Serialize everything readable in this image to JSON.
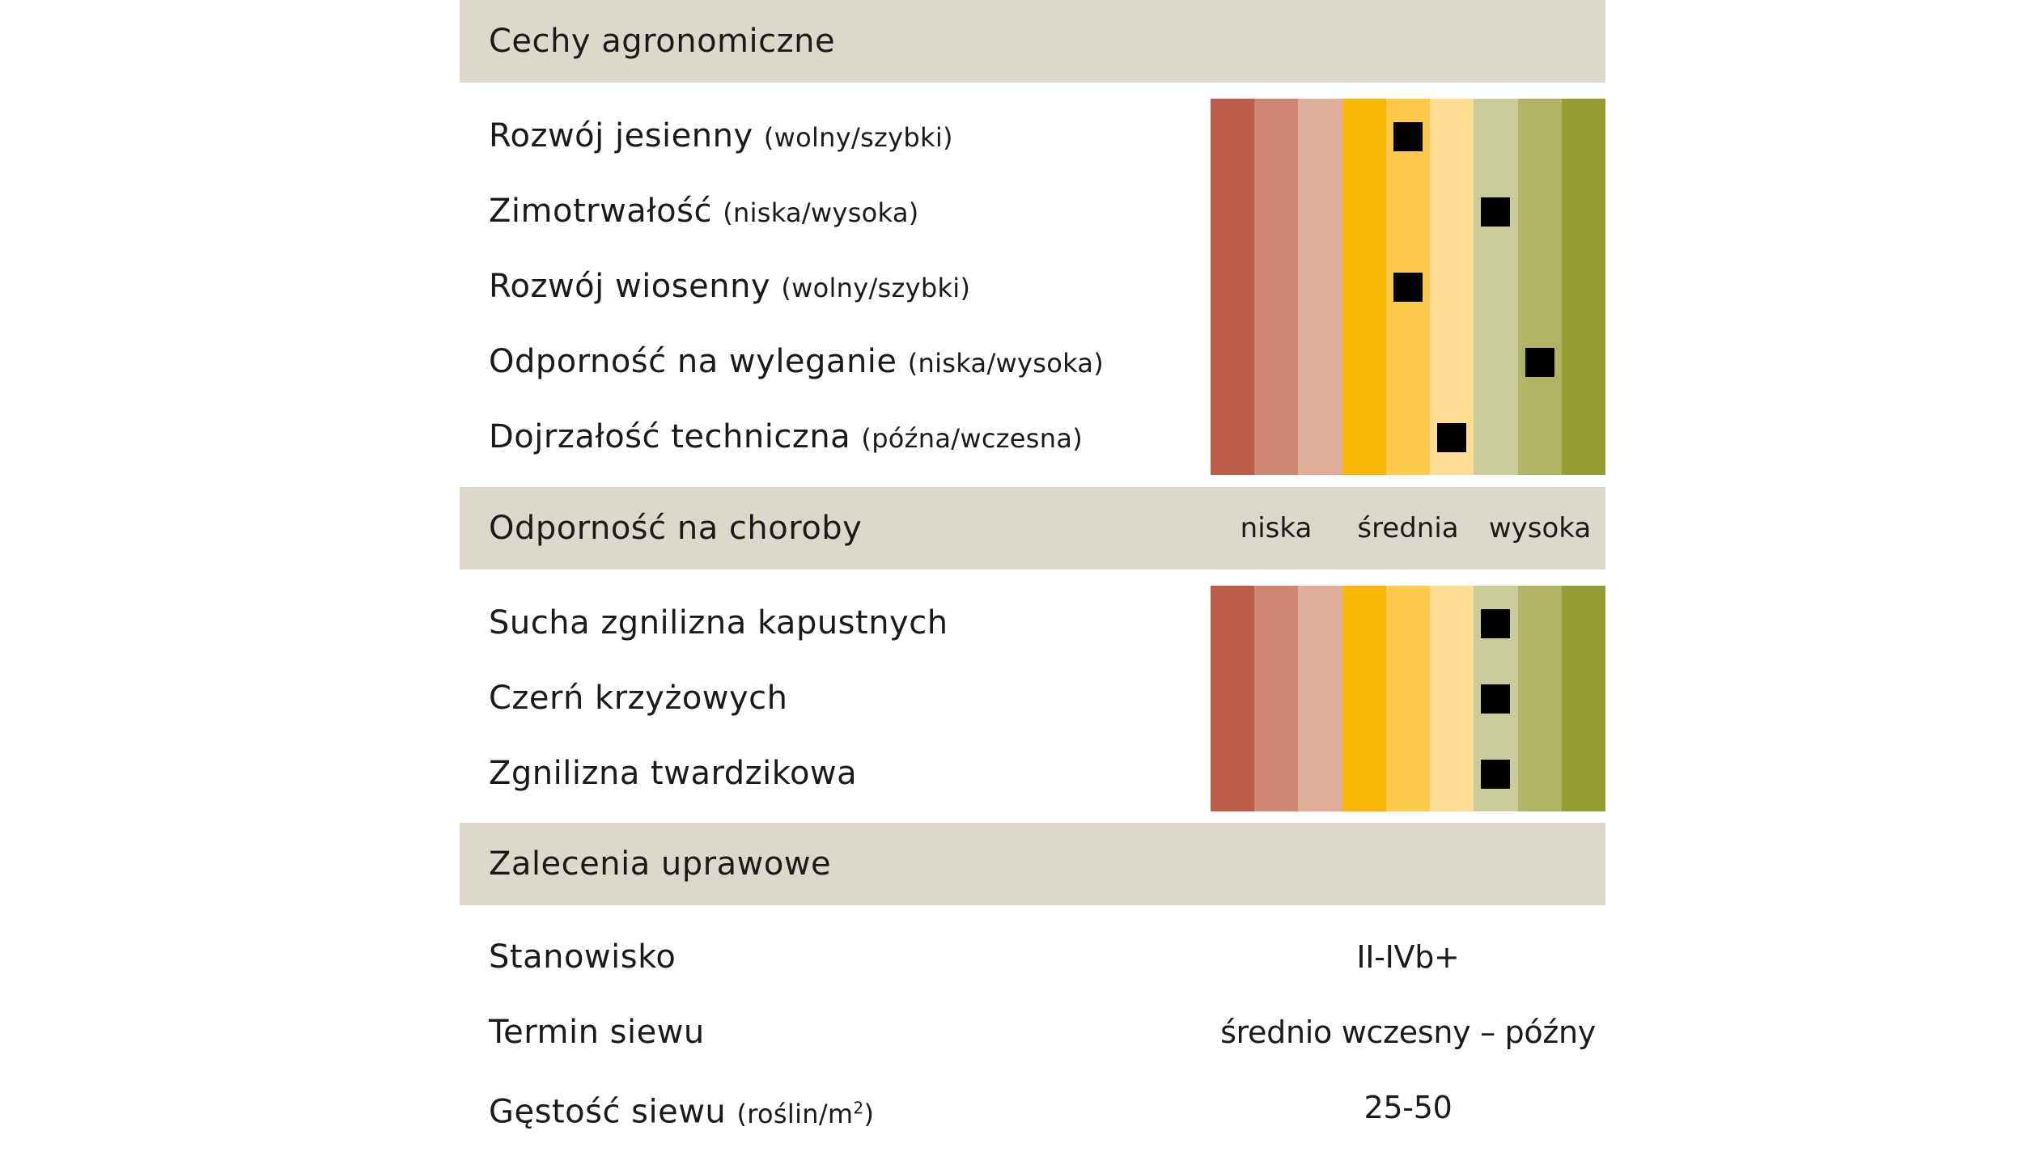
{
  "sections": {
    "agronomic": {
      "title": "Cechy agronomiczne"
    },
    "disease": {
      "title": "Odporność na choroby"
    },
    "cultivation": {
      "title": "Zalecenia uprawowe"
    }
  },
  "scale_labels": {
    "low": "niska",
    "mid": "średnia",
    "high": "wysoka"
  },
  "agronomic_rows": [
    {
      "label": "Rozwój jesienny",
      "hint": "(wolny/szybki)",
      "level": 5
    },
    {
      "label": "Zimotrwałość",
      "hint": "(niska/wysoka)",
      "level": 7
    },
    {
      "label": "Rozwój wiosenny",
      "hint": "(wolny/szybki)",
      "level": 5
    },
    {
      "label": "Odporność na wyleganie",
      "hint": "(niska/wysoka)",
      "level": 8
    },
    {
      "label": "Dojrzałość techniczna",
      "hint": "(późna/wczesna)",
      "level": 6
    }
  ],
  "disease_rows": [
    {
      "label": "Sucha zgnilizna kapustnych",
      "level": 7
    },
    {
      "label": "Czerń krzyżowych",
      "level": 7
    },
    {
      "label": "Zgnilizna twardzikowa",
      "level": 7
    }
  ],
  "cultivation_rows": [
    {
      "label": "Stanowisko",
      "value": "II-IVb+"
    },
    {
      "label": "Termin siewu",
      "value": "średnio wczesny – późny"
    },
    {
      "label": "Gęstość siewu",
      "hint_prefix": "(roślin/m",
      "hint_sup": "2",
      "hint_suffix": ")",
      "value": "25-50"
    }
  ],
  "scale_steps": 9,
  "colors": {
    "header_bg": "#dcd9cc",
    "scale": [
      "#bd5e4a",
      "#cf8672",
      "#deae9a",
      "#f9b606",
      "#fdca4c",
      "#fedd92",
      "#c9cb9b",
      "#b0b463",
      "#939d33"
    ],
    "marker": "#000000"
  }
}
